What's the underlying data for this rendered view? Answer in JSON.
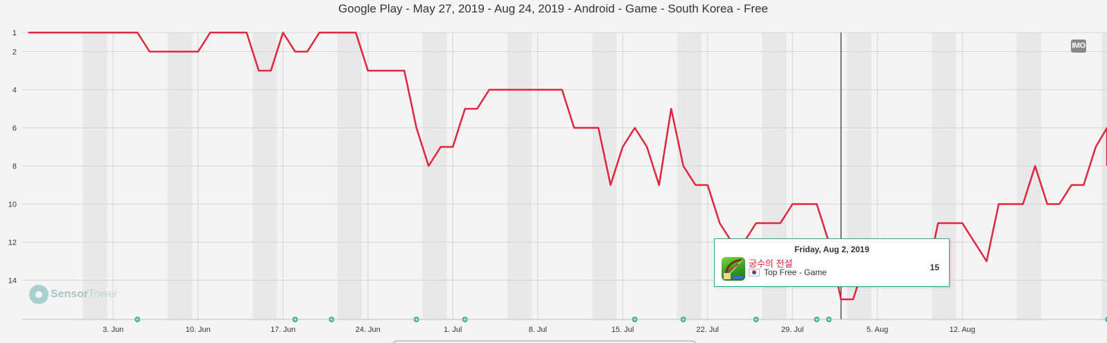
{
  "title": "Google Play - May 27, 2019 - Aug 24, 2019 - Android - Game - South Korea - Free",
  "imo_label": "IMO",
  "watermark": {
    "brand_a": "Sensor",
    "brand_b": "Tower"
  },
  "tooltip": {
    "date": "Friday, Aug 2, 2019",
    "app_name": "궁수의 전설",
    "category": "Top Free - Game",
    "rank": "15",
    "icons": [
      "app-icon",
      "south-korea-flag-icon"
    ]
  },
  "colors": {
    "line": "#e0243a",
    "marker": "#2fb39a",
    "background": "#f4f4f4",
    "weekend": "#e8e8e8",
    "grid": "#d4d4d4"
  },
  "chart_data": {
    "type": "line",
    "title": "Google Play - May 27, 2019 - Aug 24, 2019 - Android - Game - South Korea - Free",
    "x_range": [
      "2019-05-27",
      "2019-08-24"
    ],
    "y_reversed": true,
    "y_range": [
      1,
      16
    ],
    "y_ticks": [
      1,
      2,
      4,
      6,
      8,
      10,
      12,
      14
    ],
    "x_ticks": [
      {
        "label": "3. Jun",
        "date": "2019-06-03"
      },
      {
        "label": "10. Jun",
        "date": "2019-06-10"
      },
      {
        "label": "17. Jun",
        "date": "2019-06-17"
      },
      {
        "label": "24. Jun",
        "date": "2019-06-24"
      },
      {
        "label": "1. Jul",
        "date": "2019-07-01"
      },
      {
        "label": "8. Jul",
        "date": "2019-07-08"
      },
      {
        "label": "15. Jul",
        "date": "2019-07-15"
      },
      {
        "label": "22. Jul",
        "date": "2019-07-22"
      },
      {
        "label": "29. Jul",
        "date": "2019-07-29"
      },
      {
        "label": "5. Aug",
        "date": "2019-08-05"
      },
      {
        "label": "12. Aug",
        "date": "2019-08-12"
      }
    ],
    "weekend_bands": [
      "2019-06-01",
      "2019-06-08",
      "2019-06-15",
      "2019-06-22",
      "2019-06-29",
      "2019-07-06",
      "2019-07-13",
      "2019-07-20",
      "2019-07-27",
      "2019-08-03",
      "2019-08-10",
      "2019-08-17",
      "2019-08-24"
    ],
    "crosshair_date": "2019-08-02",
    "series": [
      {
        "color": "#e0243a",
        "points": [
          [
            "2019-05-27",
            1
          ],
          [
            "2019-05-28",
            1
          ],
          [
            "2019-05-29",
            1
          ],
          [
            "2019-05-30",
            1
          ],
          [
            "2019-05-31",
            1
          ],
          [
            "2019-06-01",
            1
          ],
          [
            "2019-06-02",
            1
          ],
          [
            "2019-06-03",
            1
          ],
          [
            "2019-06-04",
            1
          ],
          [
            "2019-06-05",
            1
          ],
          [
            "2019-06-06",
            2
          ],
          [
            "2019-06-07",
            2
          ],
          [
            "2019-06-08",
            2
          ],
          [
            "2019-06-09",
            2
          ],
          [
            "2019-06-10",
            2
          ],
          [
            "2019-06-11",
            1
          ],
          [
            "2019-06-12",
            1
          ],
          [
            "2019-06-13",
            1
          ],
          [
            "2019-06-14",
            1
          ],
          [
            "2019-06-15",
            3
          ],
          [
            "2019-06-16",
            3
          ],
          [
            "2019-06-17",
            1
          ],
          [
            "2019-06-18",
            2
          ],
          [
            "2019-06-19",
            2
          ],
          [
            "2019-06-20",
            1
          ],
          [
            "2019-06-21",
            1
          ],
          [
            "2019-06-22",
            1
          ],
          [
            "2019-06-23",
            1
          ],
          [
            "2019-06-24",
            3
          ],
          [
            "2019-06-25",
            3
          ],
          [
            "2019-06-26",
            3
          ],
          [
            "2019-06-27",
            3
          ],
          [
            "2019-06-28",
            6
          ],
          [
            "2019-06-29",
            8
          ],
          [
            "2019-06-30",
            7
          ],
          [
            "2019-07-01",
            7
          ],
          [
            "2019-07-02",
            5
          ],
          [
            "2019-07-03",
            5
          ],
          [
            "2019-07-04",
            4
          ],
          [
            "2019-07-05",
            4
          ],
          [
            "2019-07-06",
            4
          ],
          [
            "2019-07-07",
            4
          ],
          [
            "2019-07-08",
            4
          ],
          [
            "2019-07-09",
            4
          ],
          [
            "2019-07-10",
            4
          ],
          [
            "2019-07-11",
            6
          ],
          [
            "2019-07-12",
            6
          ],
          [
            "2019-07-13",
            6
          ],
          [
            "2019-07-14",
            9
          ],
          [
            "2019-07-15",
            7
          ],
          [
            "2019-07-16",
            6
          ],
          [
            "2019-07-17",
            7
          ],
          [
            "2019-07-18",
            9
          ],
          [
            "2019-07-19",
            5
          ],
          [
            "2019-07-20",
            8
          ],
          [
            "2019-07-21",
            9
          ],
          [
            "2019-07-22",
            9
          ],
          [
            "2019-07-23",
            11
          ],
          [
            "2019-07-24",
            12
          ],
          [
            "2019-07-25",
            12
          ],
          [
            "2019-07-26",
            11
          ],
          [
            "2019-07-27",
            11
          ],
          [
            "2019-07-28",
            11
          ],
          [
            "2019-07-29",
            10
          ],
          [
            "2019-07-30",
            10
          ],
          [
            "2019-07-31",
            10
          ],
          [
            "2019-08-01",
            12
          ],
          [
            "2019-08-02",
            15
          ],
          [
            "2019-08-03",
            15
          ],
          [
            "2019-08-04",
            13
          ],
          [
            "2019-08-05",
            13
          ],
          [
            "2019-08-06",
            13
          ],
          [
            "2019-08-07",
            13
          ],
          [
            "2019-08-08",
            14
          ],
          [
            "2019-08-09",
            14
          ],
          [
            "2019-08-10",
            11
          ],
          [
            "2019-08-11",
            11
          ],
          [
            "2019-08-12",
            11
          ],
          [
            "2019-08-13",
            12
          ],
          [
            "2019-08-14",
            13
          ],
          [
            "2019-08-15",
            10
          ],
          [
            "2019-08-16",
            10
          ],
          [
            "2019-08-17",
            10
          ],
          [
            "2019-08-18",
            8
          ],
          [
            "2019-08-19",
            10
          ],
          [
            "2019-08-20",
            10
          ],
          [
            "2019-08-21",
            9
          ],
          [
            "2019-08-22",
            9
          ],
          [
            "2019-08-23",
            7
          ],
          [
            "2019-08-24",
            6
          ],
          [
            "2019-08-25",
            8
          ]
        ]
      }
    ],
    "event_markers": [
      "2019-06-05",
      "2019-06-18",
      "2019-06-21",
      "2019-06-28",
      "2019-07-02",
      "2019-07-16",
      "2019-07-20",
      "2019-07-26",
      "2019-07-31",
      "2019-08-01",
      "2019-08-24"
    ]
  }
}
